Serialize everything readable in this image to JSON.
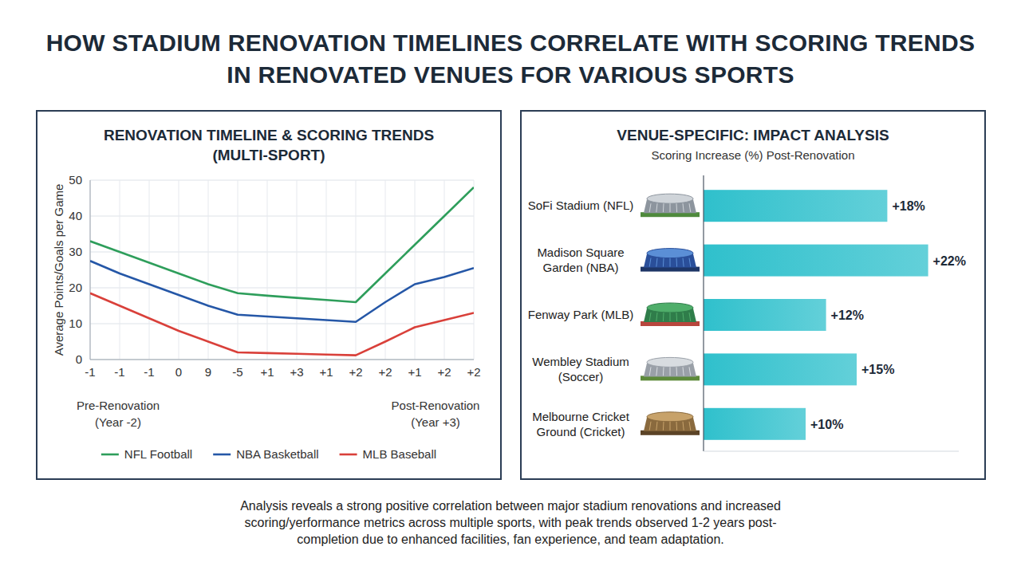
{
  "title": "HOW STADIUM RENOVATION TIMELINES CORRELATE WITH SCORING TRENDS IN RENOVATED VENUES FOR VARIOUS SPORTS",
  "caption": "Analysis reveals a strong positive correlation between major stadium renovations and increased scoring/yerformance metrics across multiple sports, with peak trends observed 1-2 years post-completion due to enhanced facilities, fan experience, and team adaptation.",
  "chart_data": [
    {
      "type": "line",
      "title": "RENOVATION TIMELINE & SCORING TRENDS (MULTI-SPORT)",
      "y_label": "Average Points/Goals per Game",
      "categories": [
        "-1",
        "-1",
        "-1",
        "0",
        "9",
        "-5",
        "+1",
        "+3",
        "+1",
        "+2",
        "+2",
        "+1",
        "+2",
        "+2"
      ],
      "series": [
        {
          "name": "NFL Football",
          "color": "#2e9e5b",
          "values": [
            33,
            30,
            27,
            24,
            21,
            18.5,
            17.8,
            17.2,
            16.6,
            16,
            24,
            32,
            40,
            48
          ]
        },
        {
          "name": "NBA Basketball",
          "color": "#2557a7",
          "values": [
            27.5,
            24,
            21,
            18,
            15,
            12.5,
            12,
            11.5,
            11,
            10.5,
            16,
            21,
            23,
            25.5
          ]
        },
        {
          "name": "MLB Baseball",
          "color": "#d9403a",
          "values": [
            18.5,
            15,
            11.5,
            8,
            5,
            2,
            1.8,
            1.6,
            1.4,
            1.2,
            5,
            9,
            11,
            13
          ]
        }
      ],
      "ylim": [
        0,
        50
      ],
      "yticks": [
        0,
        10,
        20,
        30,
        40,
        50
      ],
      "grid": true,
      "legend": "bottom",
      "annotations": [
        "Pre-Renovation (Year -2)",
        "Post-Renovation (Year +3)"
      ]
    },
    {
      "type": "bar",
      "orientation": "horizontal",
      "title": "VENUE-SPECIFIC: IMPACT ANALYSIS",
      "subtitle": "Scoring Increase (%) Post-Renovation",
      "categories": [
        "SoFi Stadium (NFL)",
        "Madison Square Garden (NBA)",
        "Fenway Park (MLB)",
        "Wembley Stadium (Soccer)",
        "Melbourne Cricket Ground (Cricket)"
      ],
      "values": [
        18,
        22,
        12,
        15,
        10
      ],
      "value_labels": [
        "+18%",
        "+22%",
        "+12%",
        "+15%",
        "+10%"
      ],
      "color": "#2fc0cc",
      "xlim": [
        0,
        25
      ],
      "data_labels": true,
      "tick_labels": "y"
    }
  ]
}
